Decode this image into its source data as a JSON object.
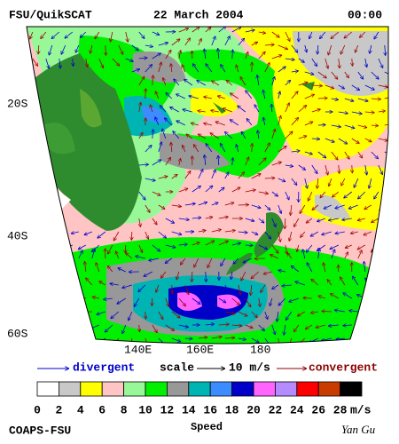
{
  "header": {
    "product": "FSU/QuikSCAT",
    "date": "22 March 2004",
    "time": "00:00"
  },
  "map": {
    "lat_labels": [
      "20S",
      "40S",
      "60S"
    ],
    "lon_labels": [
      "140E",
      "160E",
      "180"
    ]
  },
  "legend": {
    "divergent": "divergent",
    "scale": "scale",
    "scale_value": "10 m/s",
    "convergent": "convergent"
  },
  "colorbar": {
    "ticks": [
      0,
      2,
      4,
      6,
      8,
      10,
      12,
      14,
      16,
      18,
      20,
      22,
      24,
      26,
      28
    ],
    "colors": [
      "#ffffff",
      "#c8c8c8",
      "#ffff00",
      "#ffc4c4",
      "#98f898",
      "#00f000",
      "#989898",
      "#00b4b4",
      "#3c8cff",
      "#0000c8",
      "#ff64ff",
      "#b48cff",
      "#ff0000",
      "#c83c00",
      "#000000"
    ],
    "unit": "m/s",
    "title": "Speed"
  },
  "footer": {
    "org": "COAPS-FSU",
    "author": "Yan Gu"
  }
}
